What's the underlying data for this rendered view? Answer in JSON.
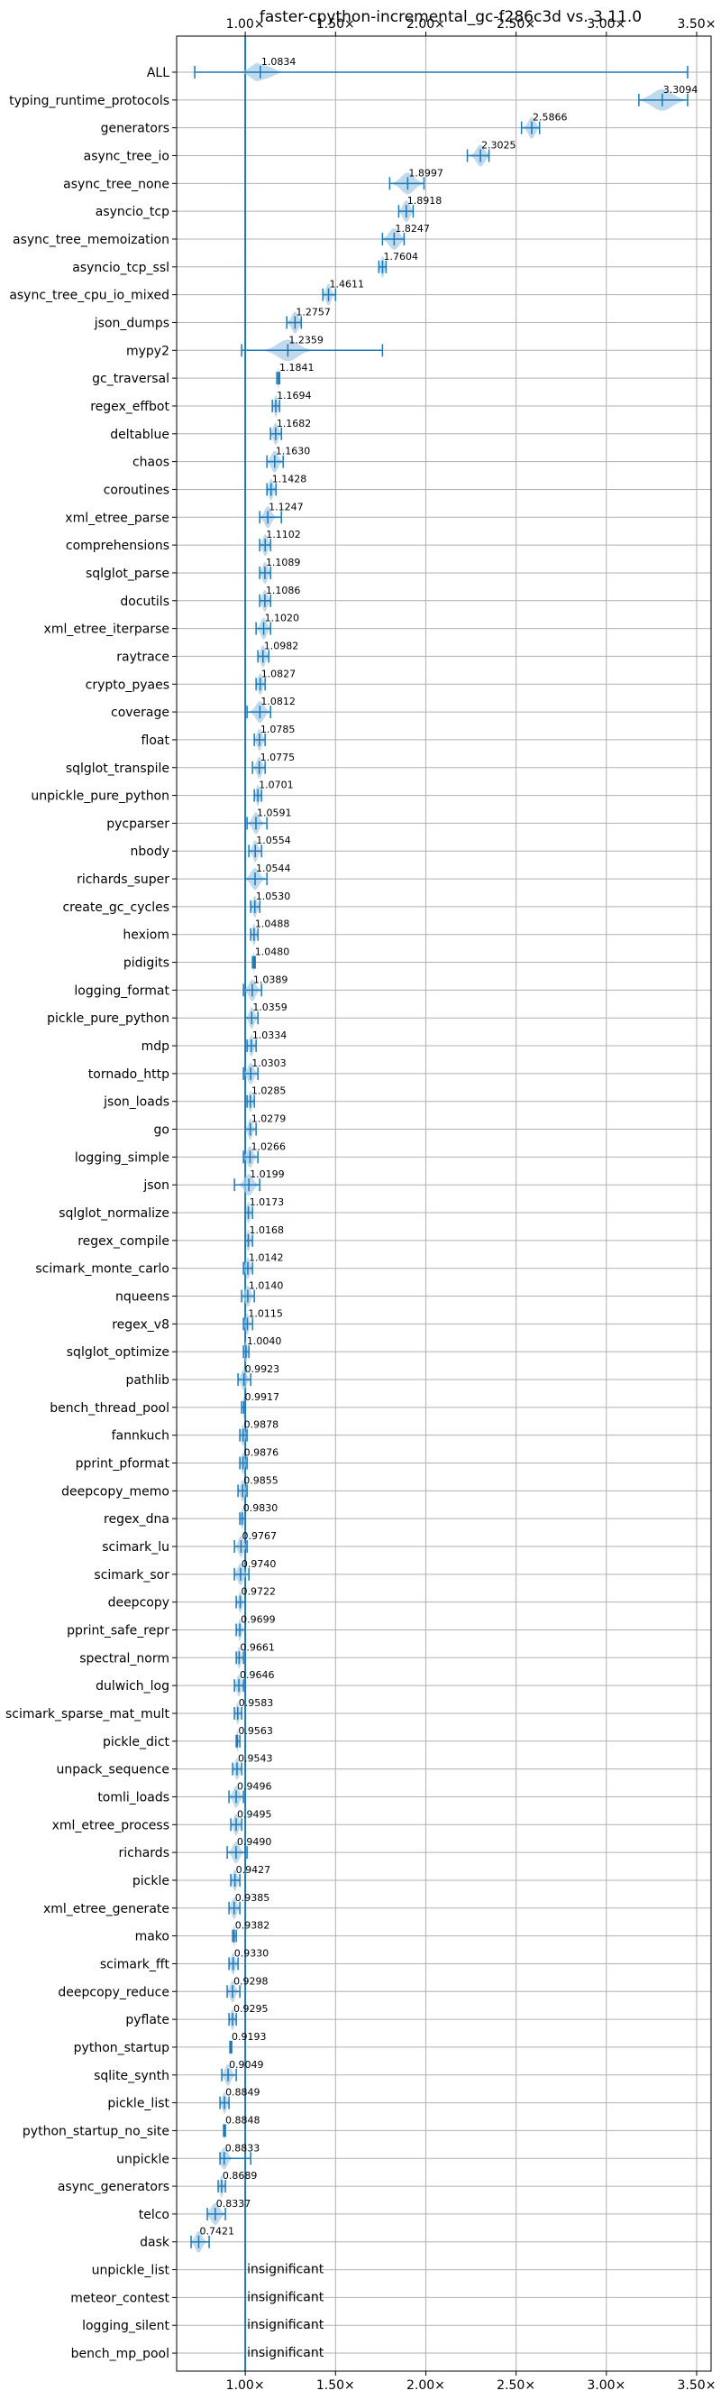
{
  "chart_data": {
    "type": "violin",
    "title": "faster-cpython-incremental_gc-f286c3d vs. 3.11.0",
    "xlim": [
      0.62,
      3.58
    ],
    "xticks": [
      1.0,
      1.5,
      2.0,
      2.5,
      3.0,
      3.5
    ],
    "xtick_labels": [
      "1.00×",
      "1.50×",
      "2.00×",
      "2.50×",
      "3.00×",
      "3.50×"
    ],
    "reference_line": 1.0,
    "grid": true,
    "colors": {
      "violin": "#a9cce7",
      "line": "#1f77b4"
    },
    "benchmarks": [
      {
        "name": "ALL",
        "value": 1.0834,
        "label": "1.0834",
        "min": 0.72,
        "max": 3.45,
        "spread": 0.09
      },
      {
        "name": "typing_runtime_protocols",
        "value": 3.3094,
        "label": "3.3094",
        "min": 3.18,
        "max": 3.45,
        "spread": 0.12
      },
      {
        "name": "generators",
        "value": 2.5866,
        "label": "2.5866",
        "min": 2.53,
        "max": 2.63,
        "spread": 0.04
      },
      {
        "name": "async_tree_io",
        "value": 2.3025,
        "label": "2.3025",
        "min": 2.23,
        "max": 2.35,
        "spread": 0.05
      },
      {
        "name": "async_tree_none",
        "value": 1.8997,
        "label": "1.8997",
        "min": 1.8,
        "max": 1.99,
        "spread": 0.08
      },
      {
        "name": "asyncio_tcp",
        "value": 1.8918,
        "label": "1.8918",
        "min": 1.85,
        "max": 1.93,
        "spread": 0.04
      },
      {
        "name": "async_tree_memoization",
        "value": 1.8247,
        "label": "1.8247",
        "min": 1.76,
        "max": 1.88,
        "spread": 0.06
      },
      {
        "name": "asyncio_tcp_ssl",
        "value": 1.7604,
        "label": "1.7604",
        "min": 1.74,
        "max": 1.78,
        "spread": 0.02
      },
      {
        "name": "async_tree_cpu_io_mixed",
        "value": 1.4611,
        "label": "1.4611",
        "min": 1.43,
        "max": 1.5,
        "spread": 0.03
      },
      {
        "name": "json_dumps",
        "value": 1.2757,
        "label": "1.2757",
        "min": 1.23,
        "max": 1.31,
        "spread": 0.04
      },
      {
        "name": "mypy2",
        "value": 1.2359,
        "label": "1.2359",
        "min": 0.98,
        "max": 1.76,
        "spread": 0.12
      },
      {
        "name": "gc_traversal",
        "value": 1.1841,
        "label": "1.1841",
        "min": 1.175,
        "max": 1.19,
        "spread": 0.008
      },
      {
        "name": "regex_effbot",
        "value": 1.1694,
        "label": "1.1694",
        "min": 1.15,
        "max": 1.19,
        "spread": 0.02
      },
      {
        "name": "deltablue",
        "value": 1.1682,
        "label": "1.1682",
        "min": 1.14,
        "max": 1.2,
        "spread": 0.03
      },
      {
        "name": "chaos",
        "value": 1.163,
        "label": "1.1630",
        "min": 1.12,
        "max": 1.21,
        "spread": 0.04
      },
      {
        "name": "coroutines",
        "value": 1.1428,
        "label": "1.1428",
        "min": 1.12,
        "max": 1.17,
        "spread": 0.025
      },
      {
        "name": "xml_etree_parse",
        "value": 1.1247,
        "label": "1.1247",
        "min": 1.08,
        "max": 1.2,
        "spread": 0.04
      },
      {
        "name": "comprehensions",
        "value": 1.1102,
        "label": "1.1102",
        "min": 1.08,
        "max": 1.14,
        "spread": 0.03
      },
      {
        "name": "sqlglot_parse",
        "value": 1.1089,
        "label": "1.1089",
        "min": 1.08,
        "max": 1.14,
        "spread": 0.03
      },
      {
        "name": "docutils",
        "value": 1.1086,
        "label": "1.1086",
        "min": 1.08,
        "max": 1.14,
        "spread": 0.03
      },
      {
        "name": "xml_etree_iterparse",
        "value": 1.102,
        "label": "1.1020",
        "min": 1.06,
        "max": 1.14,
        "spread": 0.035
      },
      {
        "name": "raytrace",
        "value": 1.0982,
        "label": "1.0982",
        "min": 1.07,
        "max": 1.13,
        "spread": 0.03
      },
      {
        "name": "crypto_pyaes",
        "value": 1.0827,
        "label": "1.0827",
        "min": 1.06,
        "max": 1.11,
        "spread": 0.025
      },
      {
        "name": "coverage",
        "value": 1.0812,
        "label": "1.0812",
        "min": 1.01,
        "max": 1.14,
        "spread": 0.05
      },
      {
        "name": "float",
        "value": 1.0785,
        "label": "1.0785",
        "min": 1.05,
        "max": 1.11,
        "spread": 0.03
      },
      {
        "name": "sqlglot_transpile",
        "value": 1.0775,
        "label": "1.0775",
        "min": 1.04,
        "max": 1.11,
        "spread": 0.03
      },
      {
        "name": "unpickle_pure_python",
        "value": 1.0701,
        "label": "1.0701",
        "min": 1.05,
        "max": 1.09,
        "spread": 0.02
      },
      {
        "name": "pycparser",
        "value": 1.0591,
        "label": "1.0591",
        "min": 1.01,
        "max": 1.12,
        "spread": 0.04
      },
      {
        "name": "nbody",
        "value": 1.0554,
        "label": "1.0554",
        "min": 1.02,
        "max": 1.09,
        "spread": 0.03
      },
      {
        "name": "richards_super",
        "value": 1.0544,
        "label": "1.0544",
        "min": 1.0,
        "max": 1.12,
        "spread": 0.05
      },
      {
        "name": "create_gc_cycles",
        "value": 1.053,
        "label": "1.0530",
        "min": 1.03,
        "max": 1.08,
        "spread": 0.025
      },
      {
        "name": "hexiom",
        "value": 1.0488,
        "label": "1.0488",
        "min": 1.03,
        "max": 1.07,
        "spread": 0.02
      },
      {
        "name": "pidigits",
        "value": 1.048,
        "label": "1.0480",
        "min": 1.04,
        "max": 1.055,
        "spread": 0.008
      },
      {
        "name": "logging_format",
        "value": 1.0389,
        "label": "1.0389",
        "min": 0.99,
        "max": 1.09,
        "spread": 0.04
      },
      {
        "name": "pickle_pure_python",
        "value": 1.0359,
        "label": "1.0359",
        "min": 1.0,
        "max": 1.07,
        "spread": 0.03
      },
      {
        "name": "mdp",
        "value": 1.0334,
        "label": "1.0334",
        "min": 1.01,
        "max": 1.06,
        "spread": 0.025
      },
      {
        "name": "tornado_http",
        "value": 1.0303,
        "label": "1.0303",
        "min": 0.99,
        "max": 1.07,
        "spread": 0.035
      },
      {
        "name": "json_loads",
        "value": 1.0285,
        "label": "1.0285",
        "min": 1.01,
        "max": 1.05,
        "spread": 0.02
      },
      {
        "name": "go",
        "value": 1.0279,
        "label": "1.0279",
        "min": 1.0,
        "max": 1.06,
        "spread": 0.025
      },
      {
        "name": "logging_simple",
        "value": 1.0266,
        "label": "1.0266",
        "min": 0.99,
        "max": 1.07,
        "spread": 0.035
      },
      {
        "name": "json",
        "value": 1.0199,
        "label": "1.0199",
        "min": 0.94,
        "max": 1.08,
        "spread": 0.05
      },
      {
        "name": "sqlglot_normalize",
        "value": 1.0173,
        "label": "1.0173",
        "min": 1.0,
        "max": 1.04,
        "spread": 0.02
      },
      {
        "name": "regex_compile",
        "value": 1.0168,
        "label": "1.0168",
        "min": 1.0,
        "max": 1.04,
        "spread": 0.02
      },
      {
        "name": "scimark_monte_carlo",
        "value": 1.0142,
        "label": "1.0142",
        "min": 0.99,
        "max": 1.04,
        "spread": 0.025
      },
      {
        "name": "nqueens",
        "value": 1.014,
        "label": "1.0140",
        "min": 0.98,
        "max": 1.05,
        "spread": 0.03
      },
      {
        "name": "regex_v8",
        "value": 1.0115,
        "label": "1.0115",
        "min": 0.99,
        "max": 1.04,
        "spread": 0.02
      },
      {
        "name": "sqlglot_optimize",
        "value": 1.004,
        "label": "1.0040",
        "min": 0.99,
        "max": 1.02,
        "spread": 0.015
      },
      {
        "name": "pathlib",
        "value": 0.9923,
        "label": "0.9923",
        "min": 0.96,
        "max": 1.03,
        "spread": 0.03
      },
      {
        "name": "bench_thread_pool",
        "value": 0.9917,
        "label": "0.9917",
        "min": 0.98,
        "max": 1.0,
        "spread": 0.01
      },
      {
        "name": "fannkuch",
        "value": 0.9878,
        "label": "0.9878",
        "min": 0.97,
        "max": 1.01,
        "spread": 0.02
      },
      {
        "name": "pprint_pformat",
        "value": 0.9876,
        "label": "0.9876",
        "min": 0.97,
        "max": 1.01,
        "spread": 0.02
      },
      {
        "name": "deepcopy_memo",
        "value": 0.9855,
        "label": "0.9855",
        "min": 0.96,
        "max": 1.01,
        "spread": 0.025
      },
      {
        "name": "regex_dna",
        "value": 0.983,
        "label": "0.9830",
        "min": 0.97,
        "max": 1.0,
        "spread": 0.015
      },
      {
        "name": "scimark_lu",
        "value": 0.9767,
        "label": "0.9767",
        "min": 0.94,
        "max": 1.01,
        "spread": 0.03
      },
      {
        "name": "scimark_sor",
        "value": 0.974,
        "label": "0.9740",
        "min": 0.94,
        "max": 1.02,
        "spread": 0.035
      },
      {
        "name": "deepcopy",
        "value": 0.9722,
        "label": "0.9722",
        "min": 0.95,
        "max": 1.0,
        "spread": 0.02
      },
      {
        "name": "pprint_safe_repr",
        "value": 0.9699,
        "label": "0.9699",
        "min": 0.95,
        "max": 1.0,
        "spread": 0.02
      },
      {
        "name": "spectral_norm",
        "value": 0.9661,
        "label": "0.9661",
        "min": 0.95,
        "max": 0.99,
        "spread": 0.02
      },
      {
        "name": "dulwich_log",
        "value": 0.9646,
        "label": "0.9646",
        "min": 0.94,
        "max": 0.99,
        "spread": 0.025
      },
      {
        "name": "scimark_sparse_mat_mult",
        "value": 0.9583,
        "label": "0.9583",
        "min": 0.94,
        "max": 0.98,
        "spread": 0.02
      },
      {
        "name": "pickle_dict",
        "value": 0.9563,
        "label": "0.9563",
        "min": 0.95,
        "max": 0.97,
        "spread": 0.01
      },
      {
        "name": "unpack_sequence",
        "value": 0.9543,
        "label": "0.9543",
        "min": 0.93,
        "max": 0.98,
        "spread": 0.025
      },
      {
        "name": "tomli_loads",
        "value": 0.9496,
        "label": "0.9496",
        "min": 0.91,
        "max": 0.99,
        "spread": 0.035
      },
      {
        "name": "xml_etree_process",
        "value": 0.9495,
        "label": "0.9495",
        "min": 0.92,
        "max": 0.98,
        "spread": 0.03
      },
      {
        "name": "richards",
        "value": 0.949,
        "label": "0.9490",
        "min": 0.9,
        "max": 1.01,
        "spread": 0.04
      },
      {
        "name": "pickle",
        "value": 0.9427,
        "label": "0.9427",
        "min": 0.92,
        "max": 0.97,
        "spread": 0.025
      },
      {
        "name": "xml_etree_generate",
        "value": 0.9385,
        "label": "0.9385",
        "min": 0.91,
        "max": 0.97,
        "spread": 0.03
      },
      {
        "name": "mako",
        "value": 0.9382,
        "label": "0.9382",
        "min": 0.93,
        "max": 0.95,
        "spread": 0.01
      },
      {
        "name": "scimark_fft",
        "value": 0.933,
        "label": "0.9330",
        "min": 0.91,
        "max": 0.96,
        "spread": 0.025
      },
      {
        "name": "deepcopy_reduce",
        "value": 0.9298,
        "label": "0.9298",
        "min": 0.9,
        "max": 0.97,
        "spread": 0.03
      },
      {
        "name": "pyflate",
        "value": 0.9295,
        "label": "0.9295",
        "min": 0.91,
        "max": 0.95,
        "spread": 0.02
      },
      {
        "name": "python_startup",
        "value": 0.9193,
        "label": "0.9193",
        "min": 0.915,
        "max": 0.925,
        "spread": 0.004
      },
      {
        "name": "sqlite_synth",
        "value": 0.9049,
        "label": "0.9049",
        "min": 0.87,
        "max": 0.95,
        "spread": 0.035
      },
      {
        "name": "pickle_list",
        "value": 0.8849,
        "label": "0.8849",
        "min": 0.86,
        "max": 0.91,
        "spread": 0.025
      },
      {
        "name": "python_startup_no_site",
        "value": 0.8848,
        "label": "0.8848",
        "min": 0.88,
        "max": 0.89,
        "spread": 0.004
      },
      {
        "name": "unpickle",
        "value": 0.8833,
        "label": "0.8833",
        "min": 0.86,
        "max": 1.03,
        "spread": 0.04
      },
      {
        "name": "async_generators",
        "value": 0.8689,
        "label": "0.8689",
        "min": 0.85,
        "max": 0.89,
        "spread": 0.02
      },
      {
        "name": "telco",
        "value": 0.8337,
        "label": "0.8337",
        "min": 0.79,
        "max": 0.89,
        "spread": 0.05
      },
      {
        "name": "dask",
        "value": 0.7421,
        "label": "0.7421",
        "min": 0.7,
        "max": 0.8,
        "spread": 0.04
      },
      {
        "name": "unpickle_list",
        "insignificant": true
      },
      {
        "name": "meteor_contest",
        "insignificant": true
      },
      {
        "name": "logging_silent",
        "insignificant": true
      },
      {
        "name": "bench_mp_pool",
        "insignificant": true
      }
    ],
    "insignificant_text": "insignificant"
  }
}
